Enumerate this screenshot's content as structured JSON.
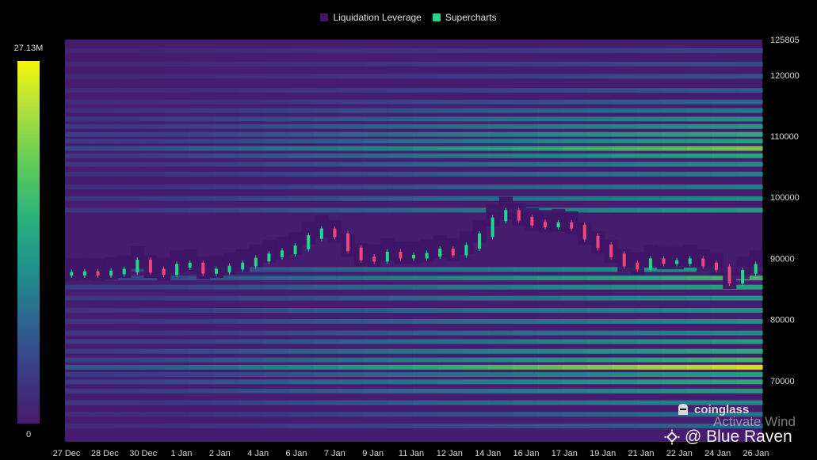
{
  "legend": [
    {
      "label": "Liquidation Leverage",
      "color": "#4a1466"
    },
    {
      "label": "Supercharts",
      "color": "#1ed98b"
    }
  ],
  "colorbar": {
    "max_label": "27.13M",
    "min_label": "0",
    "colors": [
      "#f6f60a",
      "#b7e23b",
      "#62cc58",
      "#28b17e",
      "#1f8f8c",
      "#2b6a8f",
      "#3b3f89",
      "#481b6d"
    ]
  },
  "watermarks": {
    "coinglass": "coinglass",
    "activate": "Activate Wind",
    "blue_raven": "@ Blue Raven"
  },
  "chart_data": {
    "type": "heatmap",
    "title": "",
    "xlabel": "",
    "ylabel": "",
    "ylim": [
      60000,
      125805
    ],
    "y_ticks": [
      70000,
      80000,
      90000,
      100000,
      110000,
      120000,
      125805
    ],
    "x_ticks": [
      "27 Dec",
      "28 Dec",
      "30 Dec",
      "1 Jan",
      "2 Jan",
      "4 Jan",
      "6 Jan",
      "7 Jan",
      "9 Jan",
      "11 Jan",
      "12 Jan",
      "14 Jan",
      "16 Jan",
      "17 Jan",
      "19 Jan",
      "21 Jan",
      "22 Jan",
      "24 Jan",
      "26 Jan"
    ],
    "legend_position": "top",
    "grid": false,
    "price_series": {
      "name": "Supercharts",
      "values": [
        87500,
        87600,
        87500,
        87700,
        88000,
        89500,
        88000,
        87600,
        88800,
        89000,
        87800,
        88000,
        88500,
        89000,
        89800,
        90500,
        91000,
        91800,
        93500,
        94600,
        93800,
        91500,
        90000,
        89800,
        90800,
        90300,
        90300,
        90600,
        91300,
        90800,
        91900,
        93800,
        96400,
        97600,
        96500,
        95700,
        95400,
        95600,
        95200,
        93400,
        92000,
        90500,
        89000,
        88500,
        89700,
        89400,
        89400,
        89700,
        89000,
        88400,
        86200,
        87800,
        88800
      ]
    },
    "liquidation_bands_upper": [
      {
        "price": 124000,
        "intensity": 0.18
      },
      {
        "price": 121800,
        "intensity": 0.2
      },
      {
        "price": 119800,
        "intensity": 0.22
      },
      {
        "price": 117500,
        "intensity": 0.25
      },
      {
        "price": 115600,
        "intensity": 0.3
      },
      {
        "price": 114200,
        "intensity": 0.35
      },
      {
        "price": 112800,
        "intensity": 0.45
      },
      {
        "price": 111600,
        "intensity": 0.5
      },
      {
        "price": 110300,
        "intensity": 0.58
      },
      {
        "price": 109200,
        "intensity": 0.55
      },
      {
        "price": 108000,
        "intensity": 0.72
      },
      {
        "price": 106800,
        "intensity": 0.55
      },
      {
        "price": 105400,
        "intensity": 0.45
      },
      {
        "price": 103800,
        "intensity": 0.4
      },
      {
        "price": 101700,
        "intensity": 0.4
      },
      {
        "price": 99800,
        "intensity": 0.42
      },
      {
        "price": 97900,
        "intensity": 0.5
      }
    ],
    "liquidation_bands_lower": [
      {
        "price": 88200,
        "intensity": 0.5
      },
      {
        "price": 86800,
        "intensity": 0.62
      },
      {
        "price": 85300,
        "intensity": 0.55
      },
      {
        "price": 83500,
        "intensity": 0.5
      },
      {
        "price": 81500,
        "intensity": 0.45
      },
      {
        "price": 79700,
        "intensity": 0.45
      },
      {
        "price": 77800,
        "intensity": 0.45
      },
      {
        "price": 76400,
        "intensity": 0.55
      },
      {
        "price": 74800,
        "intensity": 0.55
      },
      {
        "price": 73400,
        "intensity": 0.62
      },
      {
        "price": 72200,
        "intensity": 0.95
      },
      {
        "price": 71000,
        "intensity": 0.55
      },
      {
        "price": 69800,
        "intensity": 0.55
      },
      {
        "price": 68300,
        "intensity": 0.5
      },
      {
        "price": 66400,
        "intensity": 0.45
      },
      {
        "price": 64500,
        "intensity": 0.35
      },
      {
        "price": 62600,
        "intensity": 0.28
      }
    ]
  }
}
